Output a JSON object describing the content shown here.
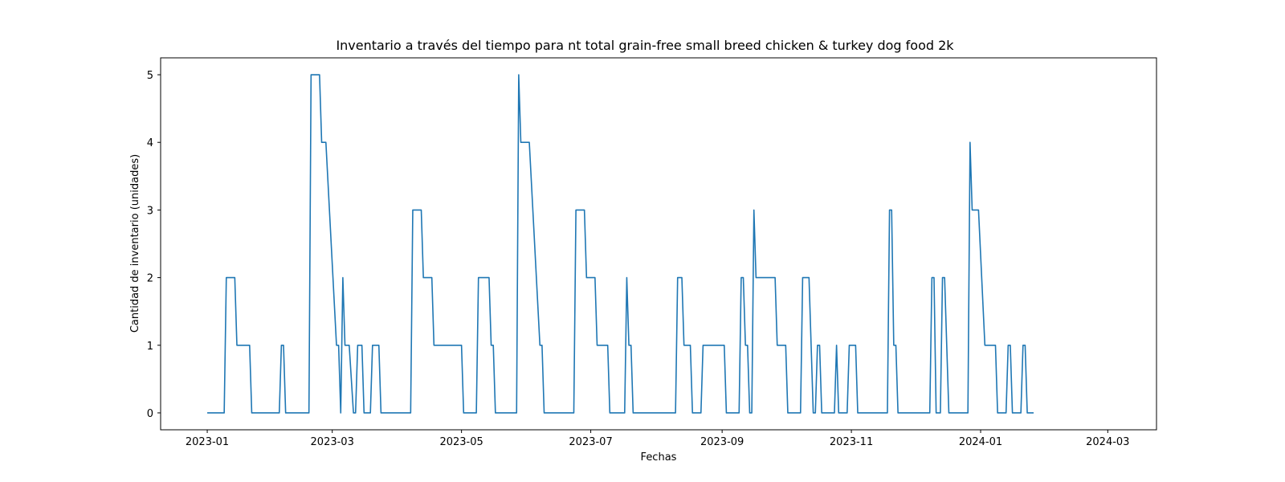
{
  "chart_data": {
    "type": "line",
    "title": "Inventario a través del tiempo para nt total grain-free small breed chicken & turkey dog food 2k",
    "xlabel": "Fechas",
    "ylabel": "Cantidad de inventario (unidades)",
    "ylim": [
      -0.25,
      5.25
    ],
    "xlim": [
      "2022-12-10",
      "2024-03-24"
    ],
    "grid": false,
    "x_ticks": [
      "2023-01",
      "2023-03",
      "2023-05",
      "2023-07",
      "2023-09",
      "2023-11",
      "2024-01",
      "2024-03"
    ],
    "y_ticks": [
      0,
      1,
      2,
      3,
      4,
      5
    ],
    "line_color": "#1f77b4",
    "series": [
      {
        "points": [
          [
            "2023-01-01",
            0
          ],
          [
            "2023-01-09",
            0
          ],
          [
            "2023-01-10",
            2
          ],
          [
            "2023-01-14",
            2
          ],
          [
            "2023-01-15",
            1
          ],
          [
            "2023-01-21",
            1
          ],
          [
            "2023-01-22",
            0
          ],
          [
            "2023-02-04",
            0
          ],
          [
            "2023-02-05",
            1
          ],
          [
            "2023-02-06",
            1
          ],
          [
            "2023-02-07",
            0
          ],
          [
            "2023-02-18",
            0
          ],
          [
            "2023-02-19",
            5
          ],
          [
            "2023-02-23",
            5
          ],
          [
            "2023-02-24",
            4
          ],
          [
            "2023-02-26",
            4
          ],
          [
            "2023-03-03",
            1
          ],
          [
            "2023-03-04",
            1
          ],
          [
            "2023-03-05",
            0
          ],
          [
            "2023-03-06",
            2
          ],
          [
            "2023-03-07",
            1
          ],
          [
            "2023-03-09",
            1
          ],
          [
            "2023-03-11",
            0
          ],
          [
            "2023-03-12",
            0
          ],
          [
            "2023-03-13",
            1
          ],
          [
            "2023-03-15",
            1
          ],
          [
            "2023-03-16",
            0
          ],
          [
            "2023-03-19",
            0
          ],
          [
            "2023-03-20",
            1
          ],
          [
            "2023-03-23",
            1
          ],
          [
            "2023-03-24",
            0
          ],
          [
            "2023-04-07",
            0
          ],
          [
            "2023-04-08",
            3
          ],
          [
            "2023-04-12",
            3
          ],
          [
            "2023-04-13",
            2
          ],
          [
            "2023-04-17",
            2
          ],
          [
            "2023-04-18",
            1
          ],
          [
            "2023-05-01",
            1
          ],
          [
            "2023-05-02",
            0
          ],
          [
            "2023-05-08",
            0
          ],
          [
            "2023-05-09",
            2
          ],
          [
            "2023-05-14",
            2
          ],
          [
            "2023-05-15",
            1
          ],
          [
            "2023-05-16",
            1
          ],
          [
            "2023-05-17",
            0
          ],
          [
            "2023-05-27",
            0
          ],
          [
            "2023-05-28",
            5
          ],
          [
            "2023-05-29",
            4
          ],
          [
            "2023-06-02",
            4
          ],
          [
            "2023-06-07",
            1
          ],
          [
            "2023-06-08",
            1
          ],
          [
            "2023-06-09",
            0
          ],
          [
            "2023-06-23",
            0
          ],
          [
            "2023-06-24",
            3
          ],
          [
            "2023-06-28",
            3
          ],
          [
            "2023-06-29",
            2
          ],
          [
            "2023-07-03",
            2
          ],
          [
            "2023-07-04",
            1
          ],
          [
            "2023-07-09",
            1
          ],
          [
            "2023-07-10",
            0
          ],
          [
            "2023-07-17",
            0
          ],
          [
            "2023-07-18",
            2
          ],
          [
            "2023-07-19",
            1
          ],
          [
            "2023-07-20",
            1
          ],
          [
            "2023-07-21",
            0
          ],
          [
            "2023-08-10",
            0
          ],
          [
            "2023-08-11",
            2
          ],
          [
            "2023-08-13",
            2
          ],
          [
            "2023-08-14",
            1
          ],
          [
            "2023-08-17",
            1
          ],
          [
            "2023-08-18",
            0
          ],
          [
            "2023-08-22",
            0
          ],
          [
            "2023-08-23",
            1
          ],
          [
            "2023-09-02",
            1
          ],
          [
            "2023-09-03",
            0
          ],
          [
            "2023-09-09",
            0
          ],
          [
            "2023-09-10",
            2
          ],
          [
            "2023-09-11",
            2
          ],
          [
            "2023-09-12",
            1
          ],
          [
            "2023-09-13",
            1
          ],
          [
            "2023-09-14",
            0
          ],
          [
            "2023-09-15",
            0
          ],
          [
            "2023-09-16",
            3
          ],
          [
            "2023-09-17",
            2
          ],
          [
            "2023-09-26",
            2
          ],
          [
            "2023-09-27",
            1
          ],
          [
            "2023-10-01",
            1
          ],
          [
            "2023-10-02",
            0
          ],
          [
            "2023-10-08",
            0
          ],
          [
            "2023-10-09",
            2
          ],
          [
            "2023-10-12",
            2
          ],
          [
            "2023-10-13",
            1
          ],
          [
            "2023-10-14",
            0
          ],
          [
            "2023-10-15",
            0
          ],
          [
            "2023-10-16",
            1
          ],
          [
            "2023-10-17",
            1
          ],
          [
            "2023-10-18",
            0
          ],
          [
            "2023-10-24",
            0
          ],
          [
            "2023-10-25",
            1
          ],
          [
            "2023-10-26",
            0
          ],
          [
            "2023-10-30",
            0
          ],
          [
            "2023-10-31",
            1
          ],
          [
            "2023-11-03",
            1
          ],
          [
            "2023-11-04",
            0
          ],
          [
            "2023-11-18",
            0
          ],
          [
            "2023-11-19",
            3
          ],
          [
            "2023-11-20",
            3
          ],
          [
            "2023-11-21",
            1
          ],
          [
            "2023-11-22",
            1
          ],
          [
            "2023-11-23",
            0
          ],
          [
            "2023-12-08",
            0
          ],
          [
            "2023-12-09",
            2
          ],
          [
            "2023-12-10",
            2
          ],
          [
            "2023-12-11",
            0
          ],
          [
            "2023-12-13",
            0
          ],
          [
            "2023-12-14",
            2
          ],
          [
            "2023-12-15",
            2
          ],
          [
            "2023-12-16",
            1
          ],
          [
            "2023-12-17",
            0
          ],
          [
            "2023-12-26",
            0
          ],
          [
            "2023-12-27",
            4
          ],
          [
            "2023-12-28",
            3
          ],
          [
            "2023-12-31",
            3
          ],
          [
            "2024-01-03",
            1
          ],
          [
            "2024-01-08",
            1
          ],
          [
            "2024-01-09",
            0
          ],
          [
            "2024-01-13",
            0
          ],
          [
            "2024-01-14",
            1
          ],
          [
            "2024-01-15",
            1
          ],
          [
            "2024-01-16",
            0
          ],
          [
            "2024-01-20",
            0
          ],
          [
            "2024-01-21",
            1
          ],
          [
            "2024-01-22",
            1
          ],
          [
            "2024-01-23",
            0
          ],
          [
            "2024-01-26",
            0
          ]
        ]
      }
    ]
  }
}
